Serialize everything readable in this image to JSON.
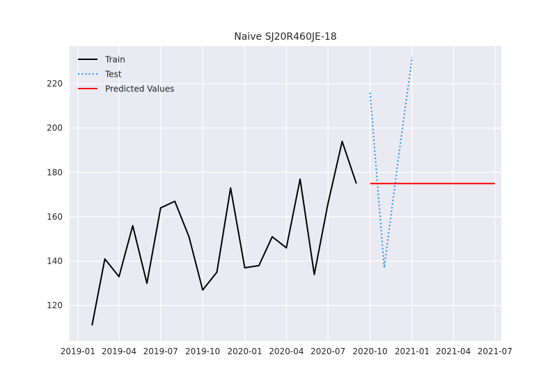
{
  "chart_data": {
    "type": "line",
    "title": "Naive SJ20R460JE-18",
    "xlabel": "",
    "ylabel": "",
    "grid": true,
    "legend_placement": "top-left",
    "xlim": [
      "2018-12-14",
      "2021-07-15"
    ],
    "ylim": [
      104,
      237
    ],
    "x_ticks": [
      "2019-01",
      "2019-04",
      "2019-07",
      "2019-10",
      "2020-01",
      "2020-04",
      "2020-07",
      "2020-10",
      "2021-01",
      "2021-04",
      "2021-07"
    ],
    "y_ticks": [
      120,
      140,
      160,
      180,
      200,
      220
    ],
    "series": [
      {
        "name": "Train",
        "color": "#000000",
        "style": "solid",
        "x": [
          "2019-02-01",
          "2019-03-01",
          "2019-04-01",
          "2019-05-01",
          "2019-06-01",
          "2019-07-01",
          "2019-08-01",
          "2019-09-01",
          "2019-10-01",
          "2019-11-01",
          "2019-12-01",
          "2020-01-01",
          "2020-02-01",
          "2020-03-01",
          "2020-04-01",
          "2020-05-01",
          "2020-06-01",
          "2020-07-01",
          "2020-08-01",
          "2020-09-01"
        ],
        "y": [
          111,
          141,
          133,
          156,
          130,
          164,
          167,
          151,
          127,
          135,
          173,
          137,
          138,
          151,
          146,
          177,
          134,
          166,
          194,
          175
        ]
      },
      {
        "name": "Test",
        "color": "#1e90ff",
        "style": "dotted",
        "x": [
          "2020-10-01",
          "2020-11-01",
          "2020-12-01",
          "2021-01-01"
        ],
        "y": [
          216,
          137,
          185,
          232
        ]
      },
      {
        "name": "Predicted Values",
        "color": "#ff0000",
        "style": "solid",
        "x": [
          "2020-10-01",
          "2020-11-01",
          "2020-12-01",
          "2021-01-01",
          "2021-02-01",
          "2021-03-01",
          "2021-04-01",
          "2021-05-01",
          "2021-06-01",
          "2021-07-01"
        ],
        "y": [
          175,
          175,
          175,
          175,
          175,
          175,
          175,
          175,
          175,
          175
        ]
      }
    ]
  }
}
